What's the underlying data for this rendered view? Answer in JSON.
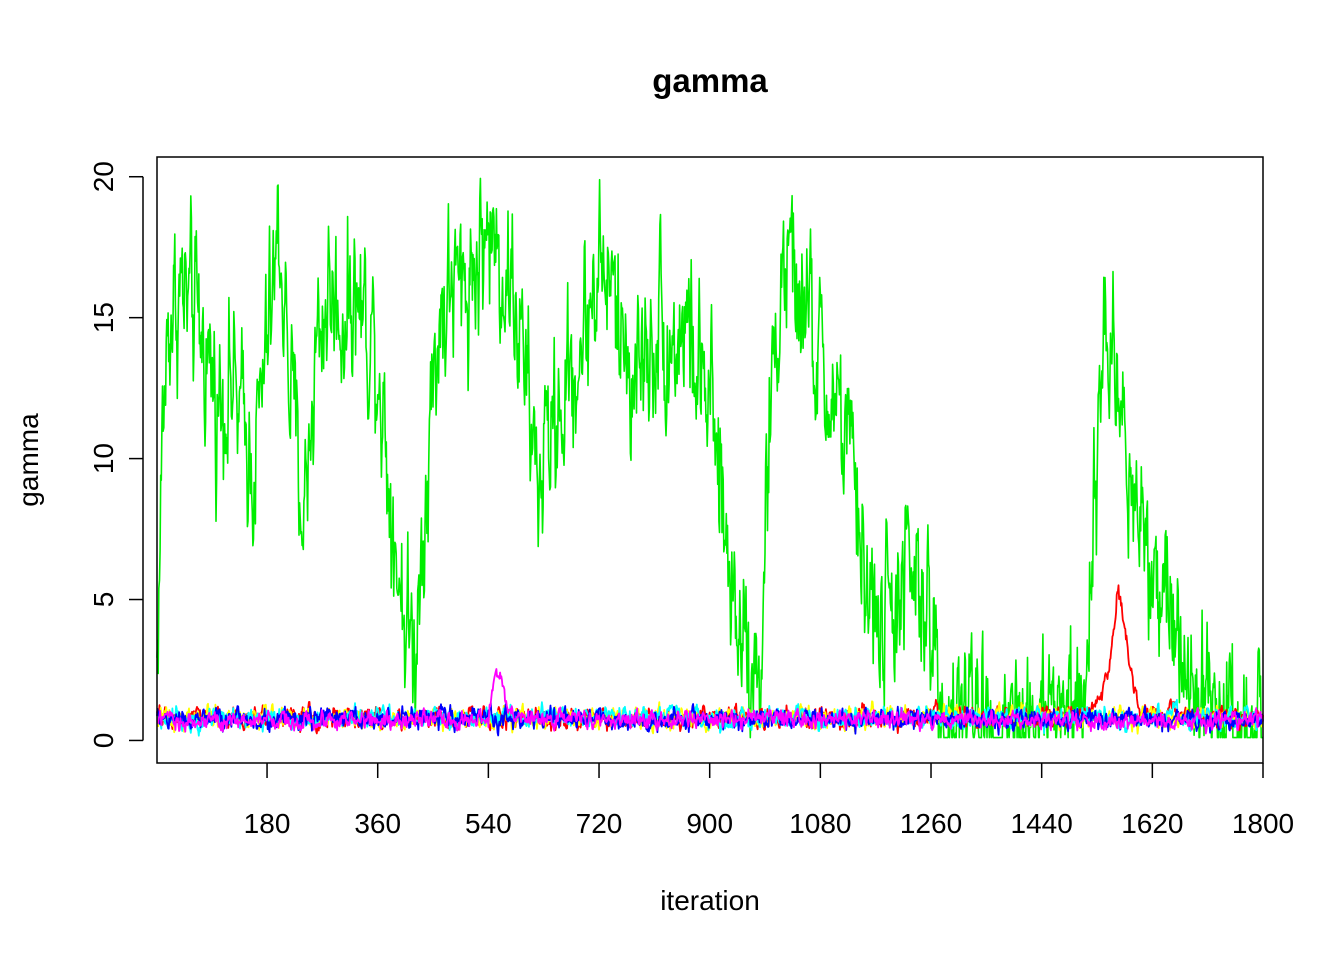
{
  "chart_data": {
    "type": "line",
    "title": "gamma",
    "xlabel": "iteration",
    "ylabel": "gamma",
    "xlim": [
      1,
      1800
    ],
    "ylim": [
      -0.8,
      20.7
    ],
    "x_ticks": [
      180,
      360,
      540,
      720,
      900,
      1080,
      1260,
      1440,
      1620,
      1800
    ],
    "x_tick_labels": [
      "180",
      "360",
      "540",
      "720",
      "900",
      "1080",
      "1260",
      "1440",
      "1620",
      "1800"
    ],
    "y_ticks": [
      0,
      5,
      10,
      15,
      20
    ],
    "y_tick_labels": [
      "0",
      "5",
      "10",
      "15",
      "20"
    ],
    "grid": false,
    "legend": "none",
    "series_colors": [
      "#00EE00",
      "#FF0000",
      "#FFFF00",
      "#00FFFF",
      "#0000FF",
      "#FF00FF"
    ],
    "n_points": 1800,
    "series": [
      {
        "color": "#00EE00",
        "trace_level": {
          "x": [
            1,
            10,
            20,
            40,
            60,
            80,
            100,
            120,
            140,
            160,
            180,
            200,
            220,
            240,
            260,
            280,
            300,
            320,
            340,
            360,
            380,
            400,
            420,
            440,
            460,
            480,
            500,
            520,
            540,
            560,
            580,
            600,
            620,
            640,
            660,
            680,
            700,
            720,
            740,
            760,
            780,
            800,
            820,
            840,
            860,
            880,
            900,
            920,
            940,
            960,
            980,
            1000,
            1020,
            1040,
            1060,
            1080,
            1100,
            1120,
            1140,
            1160,
            1180,
            1200,
            1220,
            1240,
            1260,
            1280,
            1300,
            1400,
            1500,
            1520,
            1540,
            1560,
            1580,
            1600,
            1620,
            1640,
            1660,
            1680,
            1700,
            1720,
            1800
          ],
          "y": [
            2.5,
            11,
            15,
            16,
            15,
            14,
            12,
            13,
            11,
            10,
            14,
            18,
            12,
            8,
            14,
            16,
            15,
            16,
            15,
            14,
            9,
            5,
            3,
            10,
            15,
            16,
            16,
            17,
            18,
            17,
            16,
            13,
            9,
            11,
            12,
            13,
            15,
            17,
            16,
            14,
            13,
            14,
            15,
            14,
            15,
            13,
            12,
            8,
            5,
            4,
            2,
            12,
            17,
            16,
            15,
            13,
            12,
            11,
            8,
            5,
            4,
            5,
            6,
            5,
            4,
            1,
            0.8,
            0.8,
            1,
            4,
            15,
            13,
            10,
            8,
            7,
            5,
            4,
            3,
            2,
            0.8,
            0.8
          ]
        },
        "spread": 2.8,
        "range": [
          0.1,
          20
        ]
      },
      {
        "color": "#FF0000",
        "trace_level": {
          "x": [
            1,
            1500,
            1530,
            1550,
            1565,
            1580,
            1600,
            1800
          ],
          "y": [
            0.8,
            0.8,
            1.3,
            2.5,
            5.5,
            3,
            1,
            0.8
          ]
        },
        "spread": 0.35,
        "range": [
          0.1,
          8
        ]
      },
      {
        "color": "#FFFF00",
        "trace_level": {
          "x": [
            1,
            1800
          ],
          "y": [
            0.8,
            0.8
          ]
        },
        "spread": 0.35,
        "range": [
          0.1,
          2.8
        ]
      },
      {
        "color": "#00FFFF",
        "trace_level": {
          "x": [
            1,
            1800
          ],
          "y": [
            0.8,
            0.8
          ]
        },
        "spread": 0.35,
        "range": [
          0.1,
          2.5
        ]
      },
      {
        "color": "#0000FF",
        "trace_level": {
          "x": [
            1,
            1800
          ],
          "y": [
            0.75,
            0.75
          ]
        },
        "spread": 0.35,
        "range": [
          0.05,
          2.8
        ]
      },
      {
        "color": "#FF00FF",
        "trace_level": {
          "x": [
            1,
            540,
            550,
            560,
            575,
            1800
          ],
          "y": [
            0.7,
            0.7,
            2.0,
            2.5,
            0.8,
            0.7
          ]
        },
        "spread": 0.3,
        "range": [
          0.1,
          4.6
        ]
      }
    ]
  }
}
